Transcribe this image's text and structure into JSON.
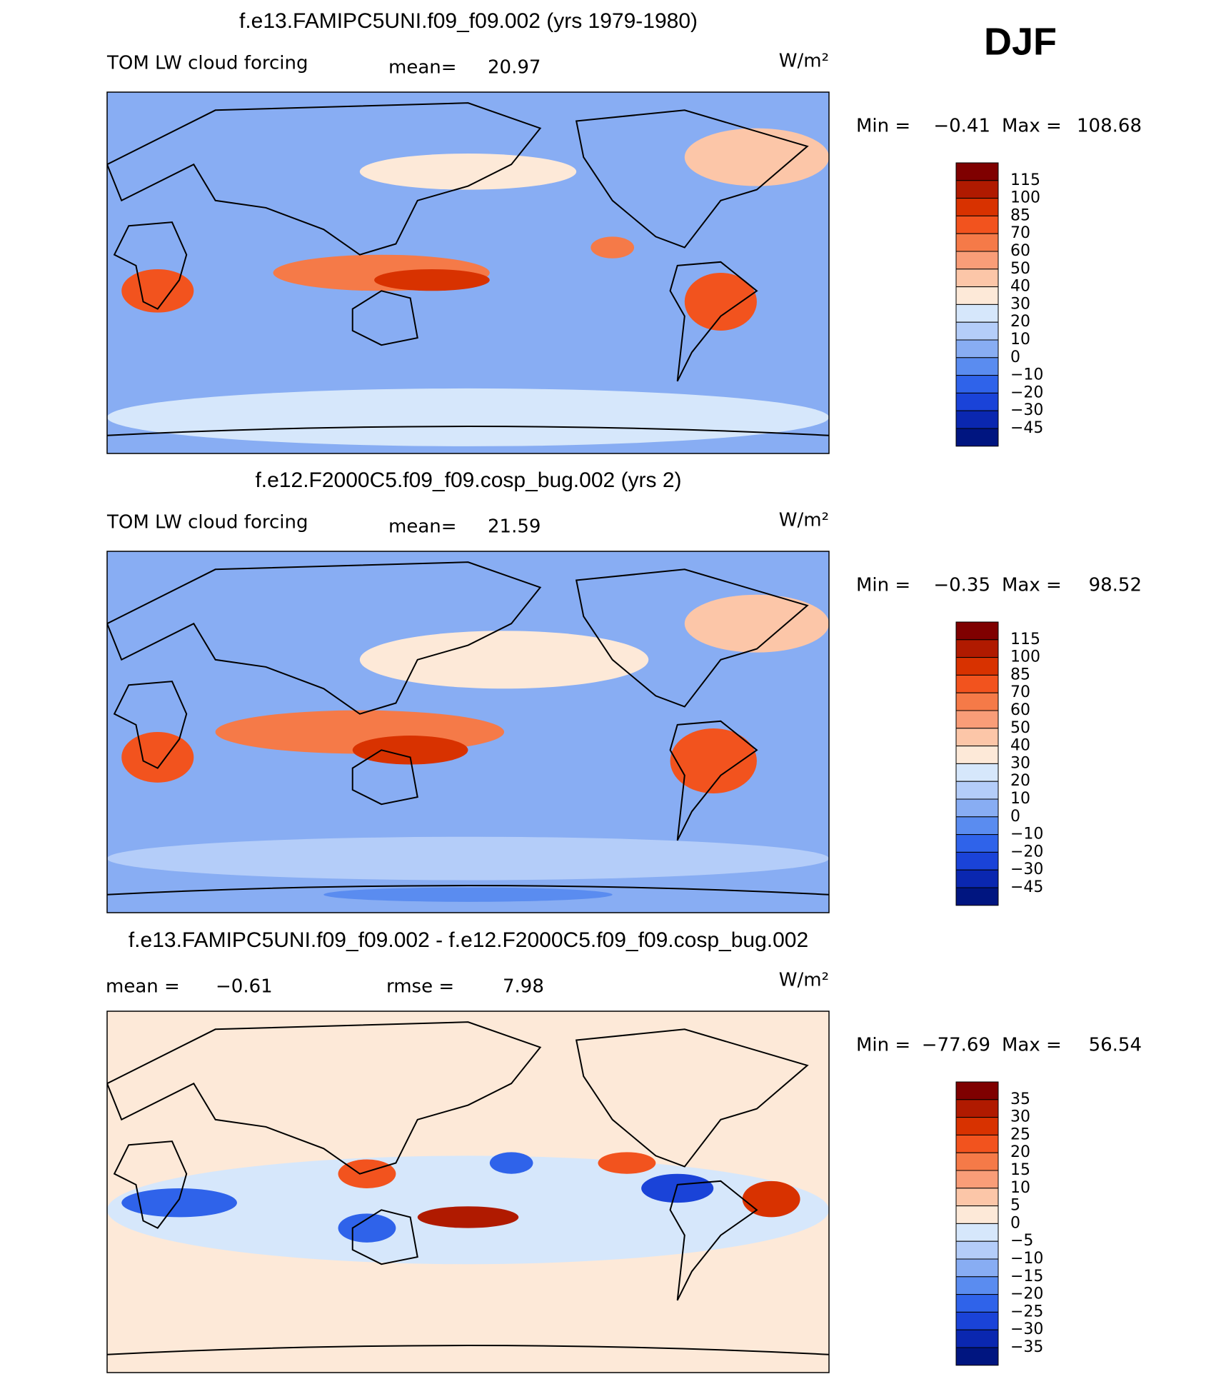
{
  "season": "DJF",
  "panels": [
    {
      "title": "f.e13.FAMIPC5UNI.f09_f09.002 (yrs 1979-1980)",
      "field": "TOM LW cloud forcing",
      "stats": [
        {
          "label": "mean=",
          "value": "20.97"
        }
      ],
      "units": "W/m²",
      "min_label": "Min =",
      "min": "−0.41",
      "max_label": "Max =",
      "max": "108.68",
      "colorbar_labels": [
        "115",
        "100",
        "85",
        "70",
        "60",
        "50",
        "40",
        "30",
        "20",
        "10",
        "0",
        "−10",
        "−20",
        "−30",
        "−45"
      ],
      "colors": [
        "#7f0000",
        "#b01a00",
        "#d83200",
        "#f2531e",
        "#f57a48",
        "#f99d78",
        "#fcc6a8",
        "#fde9d8",
        "#d6e7fb",
        "#b4cdf9",
        "#88adf3",
        "#5a8cf0",
        "#2f63ea",
        "#1a43d8",
        "#0a27b0",
        "#001580"
      ]
    },
    {
      "title": "f.e12.F2000C5.f09_f09.cosp_bug.002 (yrs 2)",
      "field": "TOM LW cloud forcing",
      "stats": [
        {
          "label": "mean=",
          "value": "21.59"
        }
      ],
      "units": "W/m²",
      "min_label": "Min =",
      "min": "−0.35",
      "max_label": "Max =",
      "max": "98.52",
      "colorbar_labels": [
        "115",
        "100",
        "85",
        "70",
        "60",
        "50",
        "40",
        "30",
        "20",
        "10",
        "0",
        "−10",
        "−20",
        "−30",
        "−45"
      ],
      "colors": [
        "#7f0000",
        "#b01a00",
        "#d83200",
        "#f2531e",
        "#f57a48",
        "#f99d78",
        "#fcc6a8",
        "#fde9d8",
        "#d6e7fb",
        "#b4cdf9",
        "#88adf3",
        "#5a8cf0",
        "#2f63ea",
        "#1a43d8",
        "#0a27b0",
        "#001580"
      ]
    },
    {
      "title": "f.e13.FAMIPC5UNI.f09_f09.002 - f.e12.F2000C5.f09_f09.cosp_bug.002",
      "stats": [
        {
          "label": "mean =",
          "value": "−0.61"
        },
        {
          "label": "rmse =",
          "value": "7.98"
        }
      ],
      "units": "W/m²",
      "min_label": "Min =",
      "min": "−77.69",
      "max_label": "Max =",
      "max": "56.54",
      "colorbar_labels": [
        "35",
        "30",
        "25",
        "20",
        "15",
        "10",
        "5",
        "0",
        "−5",
        "−10",
        "−15",
        "−20",
        "−25",
        "−30",
        "−35"
      ],
      "colors": [
        "#7f0000",
        "#b01a00",
        "#d83200",
        "#f2531e",
        "#f57a48",
        "#f99d78",
        "#fcc6a8",
        "#fde9d8",
        "#d6e7fb",
        "#b4cdf9",
        "#88adf3",
        "#5a8cf0",
        "#2f63ea",
        "#1a43d8",
        "#0a27b0",
        "#001580"
      ]
    }
  ]
}
